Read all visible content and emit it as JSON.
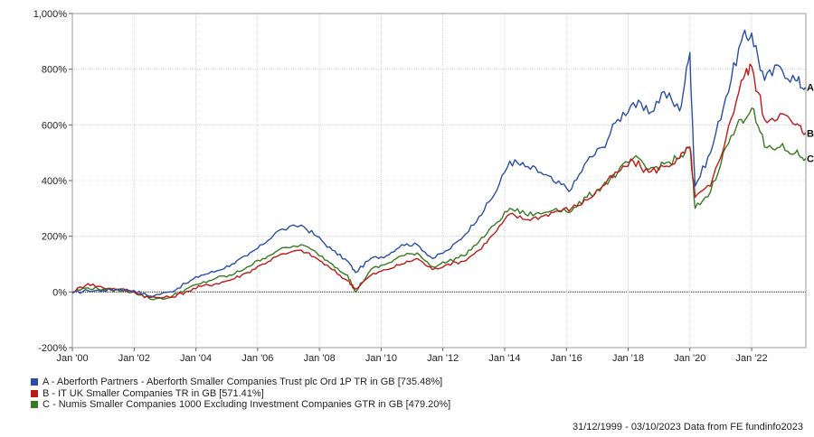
{
  "chart_data": {
    "type": "line",
    "xlabel": "",
    "ylabel": "",
    "x_tick_labels": [
      "Jan '00",
      "Jan '02",
      "Jan '04",
      "Jan '06",
      "Jan '08",
      "Jan '10",
      "Jan '12",
      "Jan '14",
      "Jan '16",
      "Jan '18",
      "Jan '20",
      "Jan '22"
    ],
    "y_tick_labels": [
      "1,000%",
      "800%",
      "600%",
      "400%",
      "200%",
      "0%",
      "-200%"
    ],
    "ylim": [
      -200,
      1000
    ],
    "xlim": [
      "1999-12-31",
      "2023-10-03"
    ],
    "grid": true,
    "x": [
      "2000-01",
      "2000-07",
      "2001-01",
      "2001-07",
      "2002-01",
      "2002-07",
      "2003-03",
      "2003-09",
      "2004-03",
      "2004-09",
      "2005-03",
      "2005-09",
      "2006-03",
      "2006-09",
      "2007-06",
      "2007-12",
      "2008-06",
      "2008-12",
      "2009-03",
      "2009-09",
      "2010-03",
      "2010-09",
      "2011-03",
      "2011-09",
      "2012-03",
      "2012-09",
      "2013-03",
      "2013-09",
      "2014-03",
      "2014-09",
      "2015-03",
      "2015-09",
      "2016-03",
      "2016-09",
      "2017-03",
      "2017-09",
      "2018-03",
      "2018-09",
      "2019-03",
      "2019-09",
      "2020-01",
      "2020-03",
      "2020-09",
      "2021-03",
      "2021-09",
      "2022-01",
      "2022-06",
      "2022-12",
      "2023-06",
      "2023-10"
    ],
    "series": [
      {
        "label": "A",
        "name": "A - Aberforth Partners - Aberforth Smaller Companies Trust plc Ord 1P TR in GB [735.48%]",
        "color": "#2b4ea4",
        "values": [
          -5,
          5,
          5,
          10,
          5,
          -15,
          0,
          30,
          60,
          75,
          100,
          130,
          170,
          220,
          240,
          200,
          150,
          110,
          70,
          120,
          130,
          170,
          170,
          120,
          150,
          200,
          270,
          350,
          470,
          450,
          430,
          390,
          370,
          470,
          520,
          620,
          680,
          640,
          720,
          650,
          860,
          380,
          500,
          700,
          900,
          930,
          760,
          810,
          760,
          735
        ]
      },
      {
        "label": "B",
        "name": "B - IT UK Smaller Companies TR in GB [571.41%]",
        "color": "#c01818",
        "values": [
          0,
          30,
          15,
          10,
          0,
          -20,
          -20,
          0,
          20,
          30,
          45,
          70,
          100,
          130,
          150,
          120,
          80,
          40,
          10,
          60,
          80,
          100,
          120,
          80,
          100,
          110,
          150,
          210,
          280,
          260,
          270,
          290,
          300,
          330,
          380,
          430,
          470,
          430,
          450,
          480,
          520,
          340,
          380,
          550,
          760,
          810,
          620,
          640,
          600,
          571
        ]
      },
      {
        "label": "C",
        "name": "C - Numis Smaller Companies 1000 Excluding Investment Companies GTR in GB [479.20%]",
        "color": "#3a7a22",
        "values": [
          0,
          15,
          10,
          5,
          0,
          -25,
          -20,
          10,
          30,
          50,
          60,
          90,
          120,
          150,
          170,
          140,
          100,
          60,
          0,
          80,
          100,
          130,
          140,
          90,
          110,
          130,
          180,
          240,
          300,
          280,
          280,
          300,
          290,
          340,
          380,
          430,
          480,
          440,
          460,
          480,
          520,
          300,
          360,
          520,
          620,
          660,
          520,
          520,
          500,
          479
        ]
      }
    ]
  },
  "footer": "31/12/1999 - 03/10/2023 Data from FE fundinfo2023"
}
